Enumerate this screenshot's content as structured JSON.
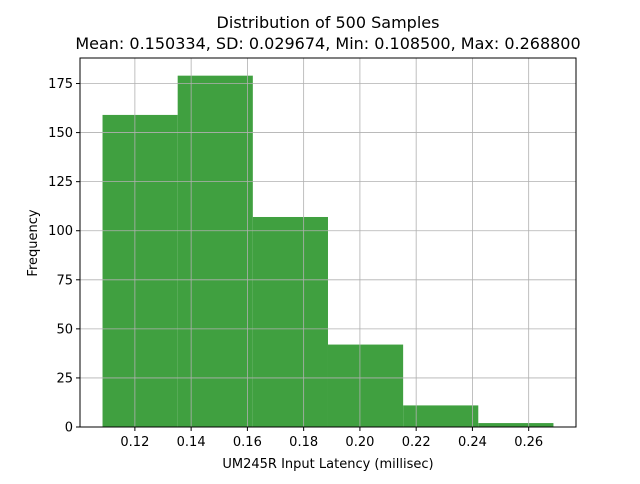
{
  "chart_data": {
    "type": "bar",
    "title": "Distribution of 500 Samples",
    "subtitle": "Mean: 0.150334, SD: 0.029674, Min: 0.108500, Max: 0.268800",
    "xlabel": "UM245R Input Latency (millisec)",
    "ylabel": "Frequency",
    "bin_edges": [
      0.1085,
      0.135217,
      0.161933,
      0.18865,
      0.215367,
      0.242083,
      0.2688
    ],
    "values": [
      159,
      179,
      107,
      42,
      11,
      2
    ],
    "xlim": [
      0.10049,
      0.27682
    ],
    "ylim": [
      0,
      188
    ],
    "xticks": [
      0.12,
      0.14,
      0.16,
      0.18,
      0.2,
      0.22,
      0.24,
      0.26
    ],
    "xtick_labels": [
      "0.12",
      "0.14",
      "0.16",
      "0.18",
      "0.20",
      "0.22",
      "0.24",
      "0.26"
    ],
    "yticks": [
      0,
      25,
      50,
      75,
      100,
      125,
      150,
      175
    ],
    "ytick_labels": [
      "0",
      "25",
      "50",
      "75",
      "100",
      "125",
      "150",
      "175"
    ],
    "grid": true,
    "bar_color": "#40a040",
    "grid_color": "#b0b0b0"
  }
}
